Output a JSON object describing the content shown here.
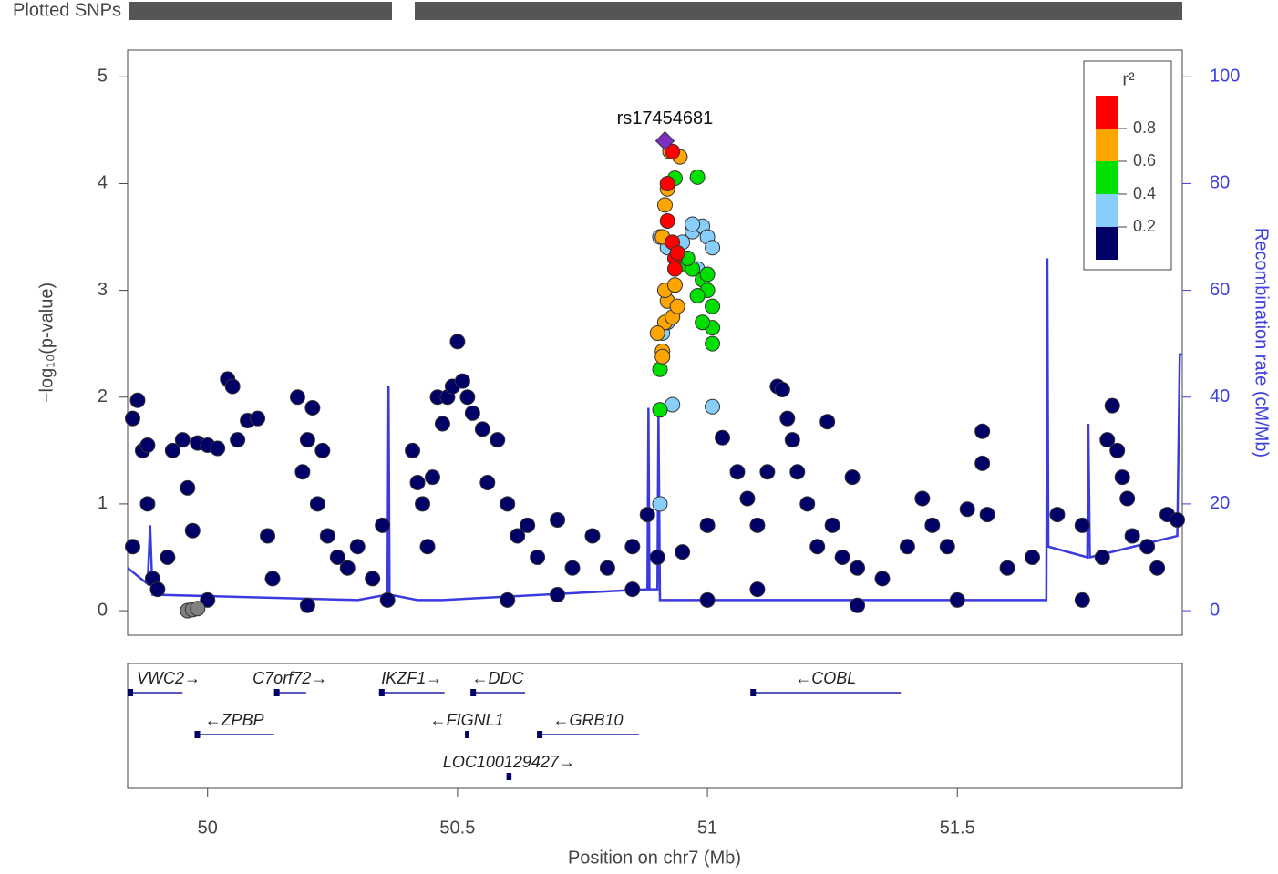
{
  "chart_data": {
    "type": "scatter",
    "top_label": "Plotted SNPs",
    "xlabel": "Position on chr7 (Mb)",
    "ylabel": "−log₁₀(p-value)",
    "y2label": "Recombination rate (cM/Mb)",
    "annotation": {
      "text": "rs17454681",
      "x": 50.915,
      "y": 4.4
    },
    "xlim": [
      49.84,
      51.95
    ],
    "ylim": [
      -0.23,
      5.25
    ],
    "y2lim": [
      -4.6,
      105
    ],
    "xticks": [
      50,
      50.5,
      51,
      51.5
    ],
    "yticks": [
      0,
      1,
      2,
      3,
      4,
      5
    ],
    "y2ticks": [
      0,
      20,
      40,
      60,
      80,
      100
    ],
    "series": [
      {
        "color": "#000066",
        "x": [
          49.85,
          49.86,
          49.87,
          49.88,
          49.85,
          49.89,
          49.9,
          49.92,
          49.88,
          49.93,
          49.95,
          49.96,
          49.97,
          49.98,
          50.0,
          50.02,
          50.04,
          50.05,
          50.06,
          50.08,
          50.1,
          50.12,
          50.13,
          50.18,
          50.21,
          50.2,
          50.19,
          50.22,
          50.23,
          50.24,
          50.26,
          50.28,
          50.3,
          50.33,
          50.35,
          50.36,
          50.41,
          50.42,
          50.43,
          50.44,
          50.45,
          50.46,
          50.47,
          50.48,
          50.49,
          50.5,
          50.51,
          50.52,
          50.53,
          50.55,
          50.56,
          50.58,
          50.6,
          50.62,
          50.64,
          50.66,
          50.7,
          50.73,
          50.77,
          50.8,
          50.85,
          50.88,
          50.9,
          50.95,
          51.0,
          51.03,
          51.06,
          51.08,
          51.1,
          51.12,
          51.14,
          51.15,
          51.16,
          51.17,
          51.18,
          51.2,
          51.22,
          51.24,
          51.25,
          51.27,
          51.29,
          51.3,
          51.35,
          51.4,
          51.43,
          51.45,
          51.48,
          51.52,
          51.55,
          51.55,
          51.56,
          51.6,
          51.65,
          51.7,
          51.75,
          51.79,
          51.8,
          51.81,
          51.82,
          51.83,
          51.84,
          51.85,
          51.88,
          51.9,
          51.92,
          51.94,
          51.0,
          50.2,
          50.6,
          51.5,
          50.0,
          51.3,
          51.75,
          50.85,
          50.7,
          51.1
        ],
        "values": [
          1.8,
          1.97,
          1.5,
          1.0,
          0.6,
          0.3,
          0.2,
          0.5,
          1.55,
          1.5,
          1.6,
          1.15,
          0.75,
          1.57,
          1.55,
          1.52,
          2.17,
          2.1,
          1.6,
          1.78,
          1.8,
          0.7,
          0.3,
          2.0,
          1.9,
          1.6,
          1.3,
          1.0,
          1.5,
          0.7,
          0.5,
          0.4,
          0.6,
          0.3,
          0.8,
          0.1,
          1.5,
          1.2,
          1.0,
          0.6,
          1.25,
          2.0,
          1.75,
          2.0,
          2.1,
          2.52,
          2.15,
          2.0,
          1.85,
          1.7,
          1.2,
          1.6,
          1.0,
          0.7,
          0.8,
          0.5,
          0.85,
          0.4,
          0.7,
          0.4,
          0.6,
          0.9,
          0.5,
          0.55,
          0.8,
          1.62,
          1.3,
          1.05,
          0.8,
          1.3,
          2.1,
          2.07,
          1.8,
          1.6,
          1.3,
          1.0,
          0.6,
          1.77,
          0.8,
          0.5,
          1.25,
          0.4,
          0.3,
          0.6,
          1.05,
          0.8,
          0.6,
          0.95,
          1.68,
          1.38,
          0.9,
          0.4,
          0.5,
          0.9,
          0.8,
          0.5,
          1.6,
          1.92,
          1.5,
          1.25,
          1.05,
          0.7,
          0.6,
          0.4,
          0.9,
          0.85,
          0.1,
          0.05,
          0.1,
          0.1,
          0.1,
          0.05,
          0.1,
          0.2,
          0.15,
          0.2
        ]
      },
      {
        "color": "#808080",
        "x": [
          49.96,
          49.97,
          49.98
        ],
        "values": [
          0.0,
          0.01,
          0.02
        ]
      },
      {
        "color": "#87cefa",
        "x": [
          50.905,
          50.93,
          51.01,
          50.905,
          50.92,
          50.95,
          50.97,
          50.99,
          51.0,
          51.01,
          50.96,
          50.98,
          50.91,
          50.92,
          50.94,
          50.97
        ],
        "values": [
          1.0,
          1.93,
          1.91,
          3.5,
          3.4,
          3.45,
          3.55,
          3.6,
          3.5,
          3.4,
          3.3,
          3.2,
          2.6,
          2.7,
          3.35,
          3.62
        ]
      },
      {
        "color": "#00e000",
        "x": [
          50.905,
          50.905,
          50.935,
          50.98,
          50.95,
          50.97,
          50.99,
          51.0,
          51.01,
          51.01,
          51.01,
          50.99,
          50.96,
          51.0,
          50.98
        ],
        "values": [
          1.88,
          2.26,
          4.05,
          4.06,
          3.25,
          3.2,
          3.1,
          3.0,
          2.85,
          2.65,
          2.5,
          2.7,
          3.3,
          3.15,
          2.95
        ]
      },
      {
        "color": "#ffa500",
        "x": [
          50.91,
          50.91,
          50.915,
          50.92,
          50.915,
          50.93,
          50.94,
          50.915,
          50.92,
          50.925,
          50.945,
          50.9,
          50.935,
          50.91
        ],
        "values": [
          2.43,
          2.38,
          2.7,
          2.9,
          3.0,
          2.75,
          2.85,
          3.8,
          3.95,
          4.3,
          4.25,
          2.6,
          3.05,
          3.5
        ]
      },
      {
        "color": "#ff0000",
        "x": [
          50.92,
          50.92,
          50.93,
          50.935,
          50.94,
          50.93,
          50.935
        ],
        "values": [
          4.0,
          3.65,
          3.45,
          3.3,
          3.35,
          4.3,
          3.2
        ]
      },
      {
        "color": "#7b2fbe",
        "marker": "diamond",
        "x": [
          50.915
        ],
        "values": [
          4.4
        ]
      },
      {
        "type": "line",
        "axis": "y2",
        "color": "#3a3ae0",
        "x": [
          49.84,
          49.88,
          49.885,
          49.89,
          50.3,
          50.36,
          50.362,
          50.364,
          50.42,
          50.47,
          50.88,
          50.882,
          50.884,
          50.9,
          50.902,
          50.905,
          51.3,
          51.678,
          51.68,
          51.682,
          51.76,
          51.762,
          51.765,
          51.94,
          51.945,
          51.95
        ],
        "values": [
          8,
          5,
          16,
          3,
          2,
          3,
          42,
          3,
          2,
          2,
          4,
          38,
          4,
          4,
          37,
          2,
          2,
          2,
          66,
          12,
          10,
          35,
          10,
          14,
          48,
          48
        ]
      }
    ],
    "legend": {
      "title": "r²",
      "colors": [
        "#000066",
        "#87cefa",
        "#00e000",
        "#ffa500",
        "#ff0000"
      ],
      "ticks": [
        0.2,
        0.4,
        0.6,
        0.8
      ]
    },
    "genes": [
      {
        "label": "VWC2→",
        "start": 49.84,
        "end": 49.95,
        "row": 0
      },
      {
        "label": "C7orf72→",
        "start": 50.133,
        "end": 50.197,
        "row": 0
      },
      {
        "label": "IKZF1→",
        "start": 50.343,
        "end": 50.474,
        "row": 0
      },
      {
        "label": "←DDC",
        "start": 50.526,
        "end": 50.635,
        "row": 0
      },
      {
        "label": "←COBL",
        "start": 51.086,
        "end": 51.387,
        "row": 0
      },
      {
        "label": "←ZPBP",
        "start": 49.974,
        "end": 50.133,
        "row": 1
      },
      {
        "label": "←FIGNL1",
        "start": 50.515,
        "end": 50.518,
        "row": 1
      },
      {
        "label": "←GRB10",
        "start": 50.659,
        "end": 50.863,
        "row": 1
      },
      {
        "label": "LOC100129427→",
        "start": 50.598,
        "end": 50.608,
        "row": 2
      }
    ]
  }
}
